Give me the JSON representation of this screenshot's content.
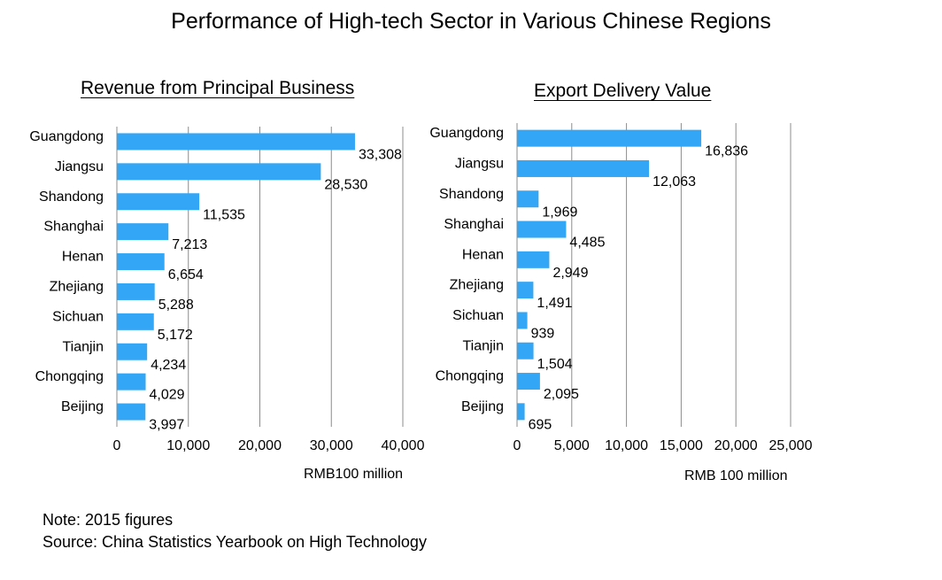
{
  "title": "Performance of High-tech Sector in Various Chinese Regions",
  "note": "Note: 2015 figures",
  "source": "Source: China Statistics Yearbook on High Technology",
  "colors": {
    "bar": "#33A6F5",
    "grid": "#8C8C8C"
  },
  "chart_data": [
    {
      "type": "bar",
      "orientation": "horizontal",
      "title": "Revenue from Principal Business",
      "xlabel": "RMB100 million",
      "categories": [
        "Guangdong",
        "Jiangsu",
        "Shandong",
        "Shanghai",
        "Henan",
        "Zhejiang",
        "Sichuan",
        "Tianjin",
        "Chongqing",
        "Beijing"
      ],
      "values": [
        33308,
        28530,
        11535,
        7213,
        6654,
        5288,
        5172,
        4234,
        4029,
        3997
      ],
      "value_labels": [
        "33,308",
        "28,530",
        "11,535",
        "7,213",
        "6,654",
        "5,288",
        "5,172",
        "4,234",
        "4,029",
        "3,997"
      ],
      "xlim": [
        0,
        40000
      ],
      "xticks": [
        0,
        10000,
        20000,
        30000,
        40000
      ],
      "xtick_labels": [
        "0",
        "10,000",
        "20,000",
        "30,000",
        "40,000"
      ],
      "grid": true
    },
    {
      "type": "bar",
      "orientation": "horizontal",
      "title": "Export Delivery Value",
      "xlabel": "RMB 100 million",
      "categories": [
        "Guangdong",
        "Jiangsu",
        "Shandong",
        "Shanghai",
        "Henan",
        "Zhejiang",
        "Sichuan",
        "Tianjin",
        "Chongqing",
        "Beijing"
      ],
      "values": [
        16836,
        12063,
        1969,
        4485,
        2949,
        1491,
        939,
        1504,
        2095,
        695
      ],
      "value_labels": [
        "16,836",
        "12,063",
        "1,969",
        "4,485",
        "2,949",
        "1,491",
        "939",
        "1,504",
        "2,095",
        "695"
      ],
      "xlim": [
        0,
        25000
      ],
      "xticks": [
        0,
        5000,
        10000,
        15000,
        20000,
        25000
      ],
      "xtick_labels": [
        "0",
        "5,000",
        "10,000",
        "15,000",
        "20,000",
        "25,000"
      ],
      "grid": true
    }
  ]
}
